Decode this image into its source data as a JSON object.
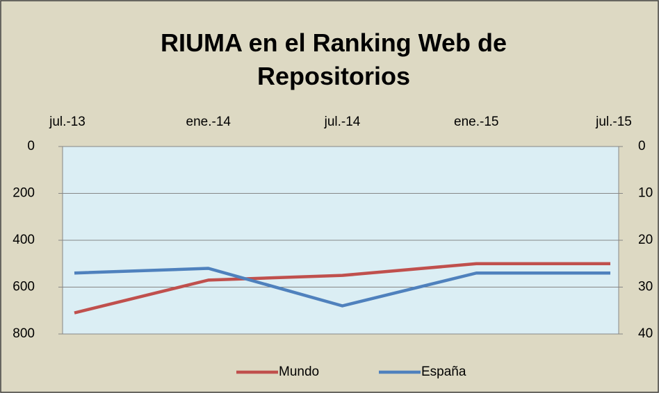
{
  "chart_data": {
    "type": "line",
    "title": "RIUMA en el Ranking Web de Repositorios",
    "categories": [
      "jul.-13",
      "ene.-14",
      "jul.-14",
      "ene.-15",
      "jul.-15"
    ],
    "series": [
      {
        "name": "Mundo",
        "color": "#c0504d",
        "values": [
          710,
          570,
          550,
          500,
          500
        ]
      },
      {
        "name": "España",
        "color": "#4f81bd",
        "values": [
          27,
          26,
          34,
          27,
          27
        ],
        "axis": "y2"
      }
    ],
    "ylim": [
      0,
      800
    ],
    "yticks": [
      0,
      200,
      400,
      600,
      800
    ],
    "y2lim": [
      0,
      40
    ],
    "y2ticks": [
      0,
      10,
      20,
      30,
      40
    ],
    "y_inverted": true,
    "grid": true,
    "legend": "bottom"
  }
}
